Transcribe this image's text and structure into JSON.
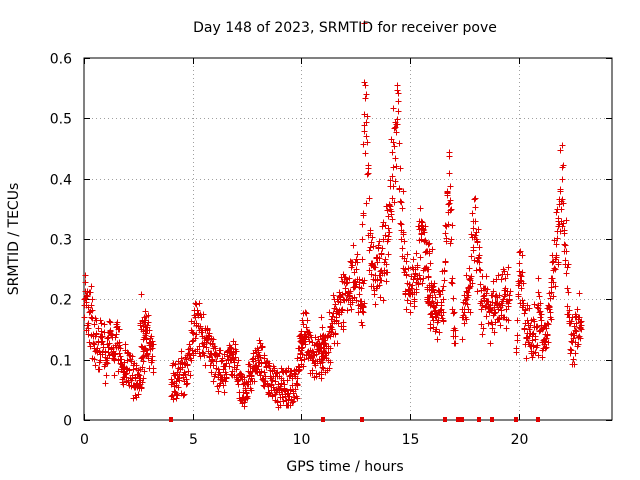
{
  "chart_data": {
    "type": "scatter",
    "title": "Day 148 of 2023, SRMTID for receiver pove",
    "xlabel": "GPS time / hours",
    "ylabel": "SRMTID / TECUs",
    "xlim": [
      0,
      24.3
    ],
    "ylim": [
      0,
      0.6
    ],
    "grid": true,
    "marker": "plus",
    "color": "#e00000",
    "x_ticks": [
      0,
      5,
      10,
      15,
      20
    ],
    "y_ticks": [
      0,
      0.1,
      0.2,
      0.3,
      0.4,
      0.5,
      0.6
    ],
    "x_tick_labels": [
      "0",
      "5",
      "10",
      "15",
      "20"
    ],
    "y_tick_labels": [
      "0",
      "0.1",
      "0.2",
      "0.3",
      "0.4",
      "0.5",
      "0.6"
    ],
    "segments": [
      {
        "x0": 0.0,
        "x1": 2.9,
        "points": [
          [
            0.0,
            0.2
          ],
          [
            0.1,
            0.19
          ],
          [
            0.2,
            0.16
          ],
          [
            0.3,
            0.17
          ],
          [
            0.5,
            0.14
          ],
          [
            0.6,
            0.12
          ],
          [
            0.8,
            0.13
          ],
          [
            1.0,
            0.1
          ],
          [
            1.2,
            0.15
          ],
          [
            1.4,
            0.11
          ],
          [
            1.6,
            0.13
          ],
          [
            1.8,
            0.08
          ],
          [
            2.0,
            0.1
          ],
          [
            2.2,
            0.07
          ],
          [
            2.4,
            0.06
          ],
          [
            2.6,
            0.06
          ],
          [
            2.8,
            0.15
          ]
        ]
      },
      {
        "x0": 2.6,
        "x1": 3.2,
        "points": [
          [
            2.6,
            0.16
          ],
          [
            2.8,
            0.15
          ],
          [
            3.0,
            0.13
          ],
          [
            3.1,
            0.1
          ]
        ]
      },
      {
        "x0": 4.0,
        "x1": 10.1,
        "points": [
          [
            4.0,
            0.06
          ],
          [
            4.3,
            0.07
          ],
          [
            4.6,
            0.08
          ],
          [
            4.9,
            0.12
          ],
          [
            5.1,
            0.17
          ],
          [
            5.3,
            0.15
          ],
          [
            5.6,
            0.13
          ],
          [
            5.9,
            0.1
          ],
          [
            6.2,
            0.08
          ],
          [
            6.5,
            0.09
          ],
          [
            6.8,
            0.11
          ],
          [
            7.1,
            0.06
          ],
          [
            7.4,
            0.05
          ],
          [
            7.7,
            0.07
          ],
          [
            8.0,
            0.1
          ],
          [
            8.3,
            0.08
          ],
          [
            8.6,
            0.06
          ],
          [
            8.9,
            0.05
          ],
          [
            9.2,
            0.06
          ],
          [
            9.5,
            0.05
          ],
          [
            9.8,
            0.07
          ],
          [
            10.0,
            0.12
          ]
        ]
      },
      {
        "x0": 9.9,
        "x1": 11.1,
        "points": [
          [
            9.9,
            0.12
          ],
          [
            10.2,
            0.14
          ],
          [
            10.5,
            0.1
          ],
          [
            10.8,
            0.12
          ],
          [
            11.0,
            0.13
          ]
        ]
      },
      {
        "x0": 10.9,
        "x1": 12.9,
        "points": [
          [
            10.9,
            0.08
          ],
          [
            11.3,
            0.14
          ],
          [
            11.6,
            0.18
          ],
          [
            11.9,
            0.2
          ],
          [
            12.2,
            0.21
          ],
          [
            12.5,
            0.25
          ],
          [
            12.8,
            0.18
          ]
        ]
      },
      {
        "x0": 12.8,
        "x1": 16.1,
        "points": [
          [
            12.8,
            0.3
          ],
          [
            12.9,
            0.56
          ],
          [
            13.2,
            0.26
          ],
          [
            13.6,
            0.24
          ],
          [
            14.0,
            0.3
          ],
          [
            14.2,
            0.42
          ],
          [
            14.4,
            0.49
          ],
          [
            14.8,
            0.24
          ],
          [
            15.2,
            0.2
          ],
          [
            15.5,
            0.31
          ],
          [
            15.8,
            0.25
          ],
          [
            16.0,
            0.22
          ]
        ]
      },
      {
        "x0": 15.8,
        "x1": 17.1,
        "points": [
          [
            15.8,
            0.2
          ],
          [
            16.2,
            0.17
          ],
          [
            16.5,
            0.2
          ],
          [
            16.8,
            0.41
          ],
          [
            17.0,
            0.14
          ]
        ]
      },
      {
        "x0": 17.4,
        "x1": 18.6,
        "points": [
          [
            17.4,
            0.17
          ],
          [
            17.7,
            0.22
          ],
          [
            18.0,
            0.33
          ],
          [
            18.3,
            0.19
          ],
          [
            18.5,
            0.21
          ]
        ]
      },
      {
        "x0": 18.6,
        "x1": 19.6,
        "points": [
          [
            18.6,
            0.16
          ],
          [
            19.0,
            0.19
          ],
          [
            19.3,
            0.2
          ]
        ]
      },
      {
        "x0": 19.9,
        "x1": 20.9,
        "points": [
          [
            19.9,
            0.12
          ],
          [
            20.0,
            0.26
          ],
          [
            20.3,
            0.16
          ],
          [
            20.6,
            0.14
          ]
        ]
      },
      {
        "x0": 20.9,
        "x1": 22.9,
        "points": [
          [
            20.9,
            0.19
          ],
          [
            21.2,
            0.12
          ],
          [
            21.5,
            0.22
          ],
          [
            21.8,
            0.33
          ],
          [
            22.0,
            0.4
          ],
          [
            22.3,
            0.17
          ],
          [
            22.6,
            0.13
          ],
          [
            22.8,
            0.17
          ]
        ]
      }
    ],
    "gap_markers_x": [
      4.0,
      11.0,
      12.8,
      16.6,
      17.2,
      17.4,
      18.2,
      18.8,
      19.9,
      20.9
    ]
  }
}
